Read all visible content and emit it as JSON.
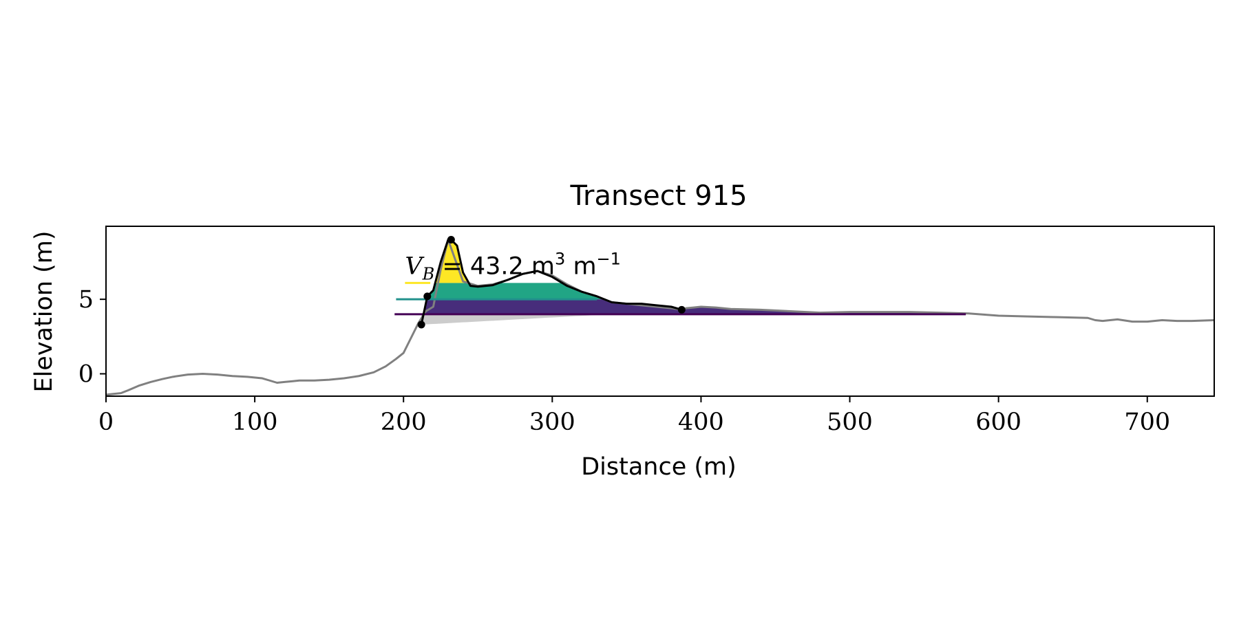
{
  "chart_data": {
    "type": "area",
    "title": "Transect 915",
    "xlabel": "Distance (m)",
    "ylabel": "Elevation (m)",
    "xlim": [
      0,
      745
    ],
    "ylim": [
      -1.5,
      9.9
    ],
    "xticks": [
      0,
      100,
      200,
      300,
      400,
      500,
      600,
      700
    ],
    "yticks": [
      0,
      5
    ],
    "grid": false,
    "annotation": {
      "prefix": "V",
      "subscript": "B",
      "text": " = 43.2 m",
      "superscript_1": "3",
      "unit_2": " m",
      "superscript_2": "−1",
      "x": 201,
      "y": 6.7
    },
    "colors": {
      "profile": "#808080",
      "dune_outline": "#000000",
      "base_fill": "#cccccc",
      "level_low": "#440154",
      "level_mid_low": "#472d7b",
      "level_mid": "#21a585",
      "level_high": "#fde725",
      "level_line_low": "#440154",
      "level_line_mid": "#21918c",
      "level_line_high": "#fde725"
    },
    "profile": {
      "x": [
        0,
        10,
        15,
        22,
        30,
        38,
        45,
        55,
        65,
        75,
        85,
        95,
        105,
        110,
        115,
        120,
        125,
        130,
        140,
        150,
        160,
        170,
        180,
        188,
        195,
        200,
        205,
        210,
        215,
        220,
        225,
        230,
        240,
        250,
        260,
        270,
        280,
        290,
        300,
        310,
        320,
        330,
        340,
        350,
        360,
        370,
        380,
        387,
        390,
        395,
        400,
        410,
        420,
        440,
        460,
        480,
        500,
        520,
        540,
        560,
        580,
        600,
        620,
        640,
        660,
        665,
        670,
        675,
        680,
        690,
        700,
        710,
        720,
        730,
        745
      ],
      "y": [
        -1.4,
        -1.3,
        -1.1,
        -0.8,
        -0.55,
        -0.35,
        -0.2,
        -0.05,
        0.0,
        -0.05,
        -0.15,
        -0.2,
        -0.3,
        -0.45,
        -0.6,
        -0.55,
        -0.5,
        -0.45,
        -0.45,
        -0.4,
        -0.3,
        -0.15,
        0.1,
        0.5,
        1.0,
        1.4,
        2.4,
        3.4,
        4.2,
        4.5,
        7.0,
        9.0,
        6.2,
        5.9,
        6.0,
        6.3,
        6.7,
        6.9,
        6.6,
        6.0,
        5.5,
        5.2,
        4.8,
        4.7,
        4.6,
        4.5,
        4.4,
        4.3,
        4.4,
        4.45,
        4.5,
        4.45,
        4.35,
        4.3,
        4.2,
        4.1,
        4.15,
        4.15,
        4.15,
        4.1,
        4.05,
        3.9,
        3.85,
        3.8,
        3.75,
        3.6,
        3.55,
        3.6,
        3.65,
        3.5,
        3.5,
        3.6,
        3.55,
        3.55,
        3.6
      ]
    },
    "dune": {
      "x": [
        212,
        216,
        220,
        225,
        230,
        232,
        236,
        240,
        245,
        250,
        260,
        270,
        280,
        290,
        300,
        310,
        320,
        330,
        340,
        350,
        360,
        370,
        380,
        387
      ],
      "y": [
        3.3,
        5.2,
        5.6,
        7.5,
        9.0,
        9.0,
        8.6,
        6.8,
        5.9,
        5.85,
        5.95,
        6.3,
        6.7,
        6.9,
        6.5,
        5.9,
        5.5,
        5.2,
        4.8,
        4.7,
        4.7,
        4.6,
        4.5,
        4.3
      ]
    },
    "points": [
      {
        "x": 212,
        "y": 3.3
      },
      {
        "x": 216,
        "y": 5.2
      },
      {
        "x": 232,
        "y": 9.0
      },
      {
        "x": 387,
        "y": 4.3
      }
    ],
    "levels": [
      {
        "y": 4.0,
        "x0": 194,
        "x1": 578,
        "color": "#440154"
      },
      {
        "y": 5.0,
        "x0": 195,
        "x1": 330,
        "color": "#21918c"
      },
      {
        "y": 6.1,
        "x0": 201,
        "x1": 218,
        "color": "#fde725"
      }
    ]
  }
}
